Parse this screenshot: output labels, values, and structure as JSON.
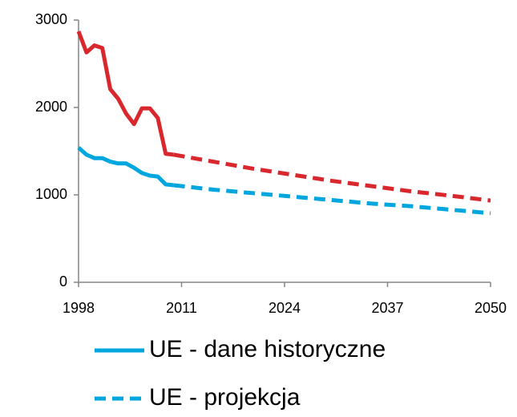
{
  "chart_data": {
    "type": "line",
    "xlim": [
      1998,
      2050
    ],
    "xticks": [
      1998,
      2011,
      2024,
      2037,
      2050
    ],
    "ylim": [
      0,
      3000
    ],
    "yticks": [
      0,
      1000,
      2000,
      3000
    ],
    "series": [
      {
        "color": "#d9272e",
        "dashed": false,
        "x": [
          1998,
          1999,
          2000,
          2001,
          2002,
          2003,
          2004,
          2005,
          2006,
          2007,
          2008,
          2009,
          2010
        ],
        "values": [
          2870,
          2630,
          2710,
          2680,
          2210,
          2100,
          1930,
          1810,
          1990,
          1990,
          1880,
          1470,
          1460
        ]
      },
      {
        "color": "#d9272e",
        "dashed": true,
        "x": [
          2010,
          2015,
          2020,
          2025,
          2030,
          2035,
          2040,
          2045,
          2050
        ],
        "values": [
          1460,
          1380,
          1300,
          1230,
          1160,
          1100,
          1040,
          990,
          935
        ]
      },
      {
        "name": "UE - dane historyczne",
        "color": "#00a6dd",
        "dashed": false,
        "x": [
          1998,
          1999,
          2000,
          2001,
          2002,
          2003,
          2004,
          2005,
          2006,
          2007,
          2008,
          2009,
          2010
        ],
        "values": [
          1540,
          1460,
          1420,
          1420,
          1380,
          1360,
          1360,
          1310,
          1250,
          1220,
          1210,
          1120,
          1110
        ]
      },
      {
        "name": "UE - projekcja",
        "color": "#00a6dd",
        "dashed": true,
        "x": [
          2010,
          2015,
          2020,
          2025,
          2030,
          2035,
          2040,
          2045,
          2050
        ],
        "values": [
          1110,
          1060,
          1020,
          980,
          940,
          900,
          870,
          830,
          790
        ]
      }
    ]
  }
}
